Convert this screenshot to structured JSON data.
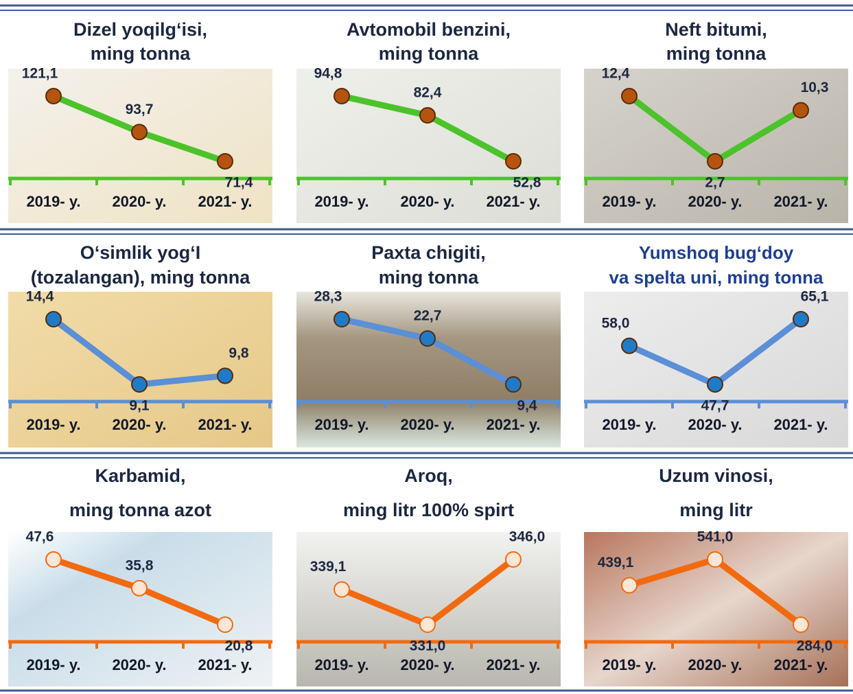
{
  "chart_data": [
    {
      "type": "line",
      "title": [
        "Dizel yoqilg‘isi,",
        "ming tonna"
      ],
      "categories": [
        "2019- y.",
        "2020- y.",
        "2021- y."
      ],
      "values": [
        121.1,
        93.7,
        71.4
      ],
      "value_labels": [
        "121,1",
        "93,7",
        "71,4"
      ],
      "color": "#4cc32a",
      "marker_color": "#b5540f"
    },
    {
      "type": "line",
      "title": [
        "Avtomobil benzini,",
        "ming tonna"
      ],
      "categories": [
        "2019- y.",
        "2020- y.",
        "2021- y."
      ],
      "values": [
        94.8,
        82.4,
        52.8
      ],
      "value_labels": [
        "94,8",
        "82,4",
        "52,8"
      ],
      "color": "#4cc32a",
      "marker_color": "#b5540f"
    },
    {
      "type": "line",
      "title": [
        "Neft bitumi,",
        "ming tonna"
      ],
      "categories": [
        "2019- y.",
        "2020- y.",
        "2021- y."
      ],
      "values": [
        12.4,
        2.7,
        10.3
      ],
      "value_labels": [
        "12,4",
        "2,7",
        "10,3"
      ],
      "color": "#4cc32a",
      "marker_color": "#b5540f"
    },
    {
      "type": "line",
      "title": [
        "O‘simlik yog‘I",
        "(tozalangan), ming tonna"
      ],
      "categories": [
        "2019- y.",
        "2020- y.",
        "2021- y."
      ],
      "values": [
        14.4,
        9.1,
        9.8
      ],
      "value_labels": [
        "14,4",
        "9,1",
        "9,8"
      ],
      "color": "#5b8fd6",
      "marker_color": "#1f7bc8"
    },
    {
      "type": "line",
      "title": [
        "Paxta chigiti,",
        "ming tonna"
      ],
      "categories": [
        "2019- y.",
        "2020- y.",
        "2021- y."
      ],
      "values": [
        28.3,
        22.7,
        9.4
      ],
      "value_labels": [
        "28,3",
        "22,7",
        "9,4"
      ],
      "color": "#5b8fd6",
      "marker_color": "#1f7bc8"
    },
    {
      "type": "line",
      "title": [
        "Yumshoq bug‘doy",
        "va spelta uni, ming tonna"
      ],
      "categories": [
        "2019- y.",
        "2020- y.",
        "2021- y."
      ],
      "values": [
        58.0,
        47.7,
        65.1
      ],
      "value_labels": [
        "58,0",
        "47,7",
        "65,1"
      ],
      "color": "#5b8fd6",
      "marker_color": "#1f7bc8"
    },
    {
      "type": "line",
      "title": [
        "Karbamid,",
        "ming tonna azot"
      ],
      "categories": [
        "2019- y.",
        "2020- y.",
        "2021- y."
      ],
      "values": [
        47.6,
        35.8,
        20.8
      ],
      "value_labels": [
        "47,6",
        "35,8",
        "20,8"
      ],
      "color": "#f26a0f",
      "marker_color": "#fde6d6"
    },
    {
      "type": "line",
      "title": [
        "Aroq,",
        "ming litr 100% spirt"
      ],
      "categories": [
        "2019- y.",
        "2020- y.",
        "2021- y."
      ],
      "values": [
        339.1,
        331.0,
        346.0
      ],
      "value_labels": [
        "339,1",
        "331,0",
        "346,0"
      ],
      "color": "#f26a0f",
      "marker_color": "#fde6d6"
    },
    {
      "type": "line",
      "title": [
        "Uzum vinosi,",
        "ming litr"
      ],
      "categories": [
        "2019- y.",
        "2020- y.",
        "2021- y."
      ],
      "values": [
        439.1,
        541.0,
        284.0
      ],
      "value_labels": [
        "439,1",
        "541,0",
        "284,0"
      ],
      "color": "#f26a0f",
      "marker_color": "#fde6d6"
    }
  ]
}
